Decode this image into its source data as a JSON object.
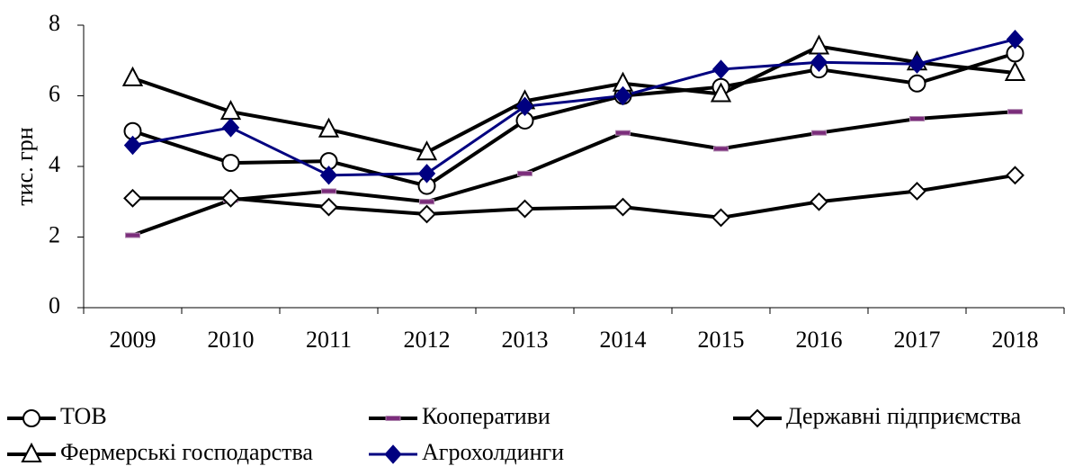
{
  "chart_data": {
    "type": "line",
    "y_label": "тис. грн",
    "categories": [
      "2009",
      "2010",
      "2011",
      "2012",
      "2013",
      "2014",
      "2015",
      "2016",
      "2017",
      "2018"
    ],
    "ylim": [
      0,
      8
    ],
    "yticks": [
      0,
      2,
      4,
      6,
      8
    ],
    "legend": "bottom",
    "series": [
      {
        "name": "ТОВ",
        "color": "#000000",
        "marker": "circle",
        "values": [
          5.0,
          4.1,
          4.15,
          3.45,
          5.3,
          6.0,
          6.25,
          6.75,
          6.35,
          7.2
        ]
      },
      {
        "name": "Кооперативи",
        "color": "#000000",
        "marker": "dash",
        "values": [
          2.05,
          3.05,
          3.3,
          3.0,
          3.8,
          4.95,
          4.5,
          4.95,
          5.35,
          5.55
        ]
      },
      {
        "name": "Державні підприємства",
        "color": "#000000",
        "marker": "diamond",
        "values": [
          3.1,
          3.1,
          2.85,
          2.65,
          2.8,
          2.85,
          2.55,
          3.0,
          3.3,
          3.75
        ]
      },
      {
        "name": "Фермерські господарства",
        "color": "#000000",
        "marker": "triangle",
        "values": [
          6.5,
          5.55,
          5.05,
          4.4,
          5.85,
          6.35,
          6.05,
          7.4,
          6.95,
          6.65
        ]
      },
      {
        "name": "Агрохолдинги",
        "color": "#000080",
        "marker": "filled-diamond",
        "values": [
          4.6,
          5.1,
          3.75,
          3.8,
          5.7,
          6.0,
          6.75,
          6.95,
          6.9,
          7.6
        ]
      }
    ]
  }
}
